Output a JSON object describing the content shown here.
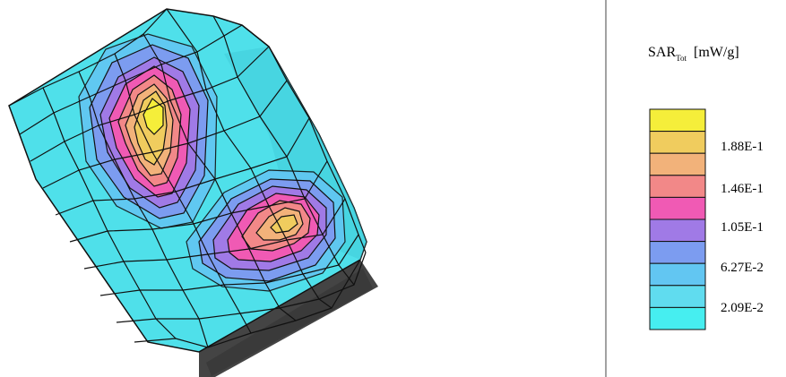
{
  "legend": {
    "title_main": "SAR",
    "title_sub": "Tot",
    "unit": "[mW/g]",
    "ticks": [
      "1.88E-1",
      "1.46E-1",
      "1.05E-1",
      "6.27E-2",
      "2.09E-2"
    ],
    "colors_top_to_bottom": [
      "#f5ee3a",
      "#f0cc5e",
      "#f2b27a",
      "#f28888",
      "#f05ab4",
      "#a07ae6",
      "#7c9cf0",
      "#62c6f2",
      "#60dcef",
      "#46eef0"
    ]
  },
  "model": {
    "base_color": "#4fe0ea",
    "edge_color": "#111111",
    "support_color": "#444444"
  }
}
